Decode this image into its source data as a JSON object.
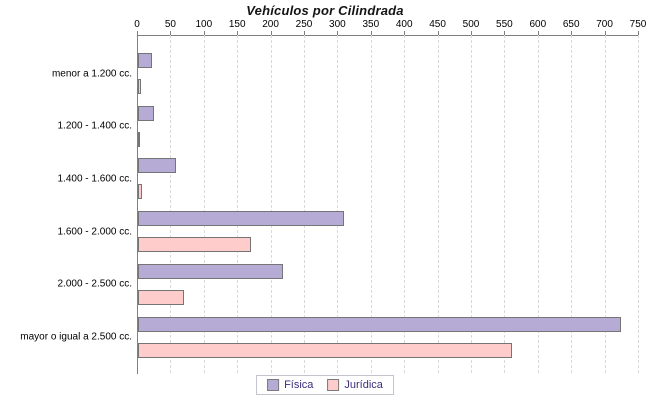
{
  "title": "Vehículos por Cilindrada",
  "colors": {
    "fisica_fill": "#b5abd5",
    "juridica_fill": "#ffcccc",
    "bar_border": "#757575",
    "axis_line": "#808080",
    "gridline": "#d9d9d9",
    "legend_text": "#3b2e7e",
    "title_text": "#141414"
  },
  "chart_data": {
    "type": "bar",
    "orientation": "horizontal",
    "title": "Vehículos por Cilindrada",
    "categories": [
      "menor a 1.200 cc.",
      "1.200 - 1.400 cc.",
      "1.400 - 1.600 cc.",
      "1.600 - 2.000 cc.",
      "2.000 - 2.500 cc.",
      "mayor o igual a 2.500 cc."
    ],
    "series": [
      {
        "name": "Física",
        "color": "#b5abd5",
        "values": [
          20,
          23,
          55,
          307,
          216,
          722
        ]
      },
      {
        "name": "Jurídica",
        "color": "#ffcccc",
        "values": [
          3,
          1,
          5,
          168,
          68,
          559
        ]
      }
    ],
    "xlabel": "",
    "ylabel": "",
    "xlim": [
      0,
      750
    ],
    "tick_step": 50,
    "x_axis_position": "top",
    "grid": "vertical-dashed",
    "legend_position": "bottom-center",
    "legend_entries": [
      "Física",
      "Jurídica"
    ]
  }
}
